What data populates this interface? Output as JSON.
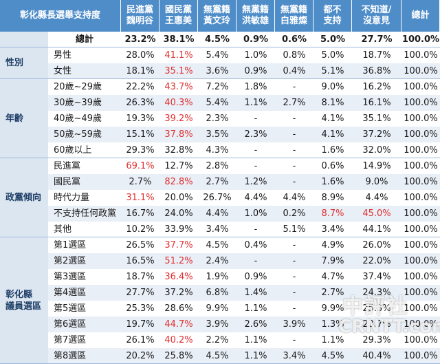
{
  "table": {
    "title": "彰化縣長選舉支持度",
    "columns": [
      "民進黨\n魏明谷",
      "國民黨\n王惠美",
      "無黨籍\n黃文玲",
      "無黨籍\n洪敏雄",
      "無黨籍\n白雅燦",
      "都不\n支持",
      "不知道/\n沒意見",
      "總計"
    ],
    "groups": [
      {
        "label": "",
        "rows": [
          {
            "label": "總計",
            "values": [
              "23.2%",
              "38.1%",
              "4.5%",
              "0.9%",
              "0.6%",
              "5.0%",
              "27.7%",
              "100.0%"
            ],
            "red": []
          }
        ]
      },
      {
        "label": "性別",
        "rows": [
          {
            "label": "男性",
            "values": [
              "28.0%",
              "41.1%",
              "5.4%",
              "1.0%",
              "0.8%",
              "5.0%",
              "18.7%",
              "100.0%"
            ],
            "red": [
              1
            ]
          },
          {
            "label": "女性",
            "values": [
              "18.1%",
              "35.1%",
              "3.6%",
              "0.9%",
              "0.4%",
              "5.1%",
              "36.8%",
              "100.0%"
            ],
            "red": [
              1
            ]
          }
        ]
      },
      {
        "label": "年齡",
        "rows": [
          {
            "label": "20歲~29歲",
            "values": [
              "22.2%",
              "43.7%",
              "7.2%",
              "1.8%",
              "-",
              "9.0%",
              "16.2%",
              "100.0%"
            ],
            "red": [
              1
            ]
          },
          {
            "label": "30歲~39歲",
            "values": [
              "26.3%",
              "40.3%",
              "5.4%",
              "1.1%",
              "2.7%",
              "8.1%",
              "16.1%",
              "100.0%"
            ],
            "red": [
              1
            ]
          },
          {
            "label": "40歲~49歲",
            "values": [
              "19.3%",
              "39.2%",
              "2.3%",
              "-",
              "-",
              "4.1%",
              "35.1%",
              "100.0%"
            ],
            "red": [
              1
            ]
          },
          {
            "label": "50歲~59歲",
            "values": [
              "15.1%",
              "37.8%",
              "3.5%",
              "2.3%",
              "-",
              "4.1%",
              "37.2%",
              "100.0%"
            ],
            "red": [
              1
            ]
          },
          {
            "label": "60歲以上",
            "values": [
              "29.3%",
              "32.8%",
              "4.3%",
              "-",
              "-",
              "1.6%",
              "32.0%",
              "100.0%"
            ],
            "red": []
          }
        ]
      },
      {
        "label": "政黨傾向",
        "rows": [
          {
            "label": "民進黨",
            "values": [
              "69.1%",
              "12.7%",
              "2.8%",
              "-",
              "-",
              "0.6%",
              "14.9%",
              "100.0%"
            ],
            "red": [
              0
            ]
          },
          {
            "label": "國民黨",
            "values": [
              "2.7%",
              "82.8%",
              "2.7%",
              "1.2%",
              "-",
              "1.6%",
              "9.0%",
              "100.0%"
            ],
            "red": [
              1
            ]
          },
          {
            "label": "時代力量",
            "values": [
              "31.1%",
              "20.0%",
              "26.7%",
              "4.4%",
              "4.4%",
              "8.9%",
              "4.4%",
              "100.0%"
            ],
            "red": [
              0
            ]
          },
          {
            "label": "不支持任何政黨",
            "values": [
              "16.7%",
              "24.0%",
              "4.4%",
              "1.0%",
              "0.2%",
              "8.7%",
              "45.0%",
              "100.0%"
            ],
            "red": [
              5,
              6
            ]
          },
          {
            "label": "其他",
            "values": [
              "10.2%",
              "33.9%",
              "3.4%",
              "-",
              "5.1%",
              "3.4%",
              "44.1%",
              "100.0%"
            ],
            "red": []
          }
        ]
      },
      {
        "label": "彰化縣\n議員選區",
        "rows": [
          {
            "label": "第1選區",
            "values": [
              "26.5%",
              "37.7%",
              "4.5%",
              "0.4%",
              "-",
              "4.9%",
              "26.0%",
              "100.0%"
            ],
            "red": [
              1
            ]
          },
          {
            "label": "第2選區",
            "values": [
              "16.5%",
              "51.2%",
              "2.4%",
              "-",
              "-",
              "7.9%",
              "22.0%",
              "100.0%"
            ],
            "red": [
              1
            ]
          },
          {
            "label": "第3選區",
            "values": [
              "18.7%",
              "36.4%",
              "1.9%",
              "0.9%",
              "-",
              "4.7%",
              "37.4%",
              "100.0%"
            ],
            "red": [
              1
            ]
          },
          {
            "label": "第4選區",
            "values": [
              "27.7%",
              "37.2%",
              "6.8%",
              "1.4%",
              "-",
              "2.7%",
              "24.3%",
              "100.0%"
            ],
            "red": []
          },
          {
            "label": "第5選區",
            "values": [
              "25.3%",
              "28.6%",
              "9.9%",
              "1.1%",
              "-",
              "9.9%",
              "25.3%",
              "100.0%"
            ],
            "red": []
          },
          {
            "label": "第6選區",
            "values": [
              "19.7%",
              "44.7%",
              "3.9%",
              "2.6%",
              "3.9%",
              "1.3%",
              "23.7%",
              "100.0%"
            ],
            "red": [
              1
            ]
          },
          {
            "label": "第7選區",
            "values": [
              "26.1%",
              "40.2%",
              "2.2%",
              "1.1%",
              "-",
              "1.1%",
              "29.3%",
              "100.0%"
            ],
            "red": [
              1
            ]
          },
          {
            "label": "第8選區",
            "values": [
              "20.2%",
              "25.8%",
              "4.5%",
              "1.1%",
              "3.4%",
              "4.5%",
              "40.4%",
              "100.0%"
            ],
            "red": []
          }
        ]
      }
    ]
  },
  "watermark": {
    "line1": "中評社",
    "line2": "CRNTT.com"
  }
}
